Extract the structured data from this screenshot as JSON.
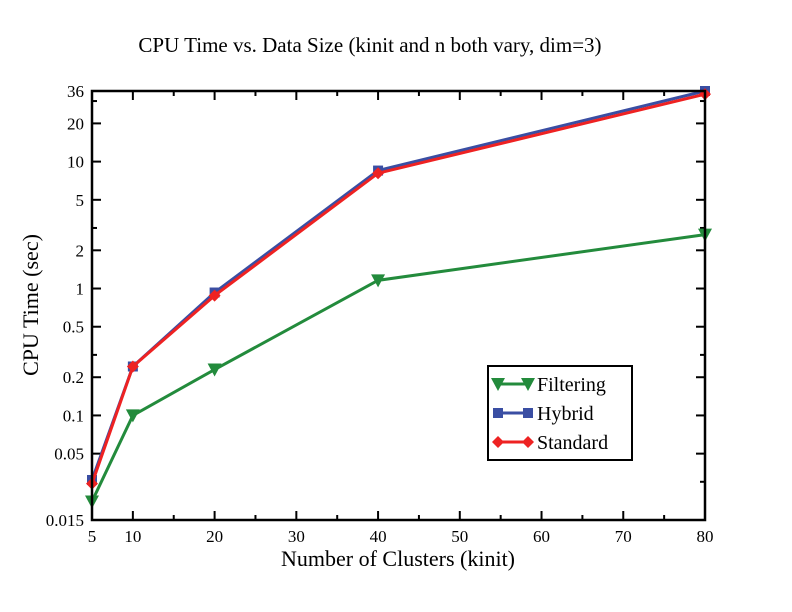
{
  "chart_data": {
    "type": "line",
    "title": "CPU Time vs. Data Size (kinit and n both vary, dim=3)",
    "xlabel": "Number of Clusters (kinit)",
    "ylabel": "CPU Time (sec)",
    "xscale": "linear",
    "yscale": "log",
    "xlim": [
      5,
      80
    ],
    "ylim": [
      0.015,
      36
    ],
    "xticks": [
      5,
      10,
      20,
      30,
      40,
      50,
      60,
      70,
      80
    ],
    "xtick_labels": [
      "5",
      "10",
      "20",
      "30",
      "40",
      "50",
      "60",
      "70",
      "80"
    ],
    "yticks": [
      0.015,
      0.05,
      0.1,
      0.2,
      0.5,
      1,
      2,
      5,
      10,
      20,
      36
    ],
    "ytick_labels": [
      "0.015",
      "0.05",
      "0.1",
      "0.2",
      "0.5",
      "1",
      "2",
      "5",
      "10",
      "20",
      "36"
    ],
    "legend_position": "lower-right",
    "x": [
      5,
      10,
      20,
      40,
      80
    ],
    "series": [
      {
        "name": "Filtering",
        "color": "#238b3c",
        "marker": "triangle-down",
        "values": [
          0.021,
          0.1,
          0.23,
          1.16,
          2.66
        ]
      },
      {
        "name": "Hybrid",
        "color": "#3a4ea3",
        "marker": "square",
        "values": [
          0.031,
          0.243,
          0.93,
          8.5,
          36
        ]
      },
      {
        "name": "Standard",
        "color": "#ee2222",
        "marker": "diamond",
        "values": [
          0.029,
          0.243,
          0.88,
          8.1,
          34
        ]
      }
    ]
  }
}
